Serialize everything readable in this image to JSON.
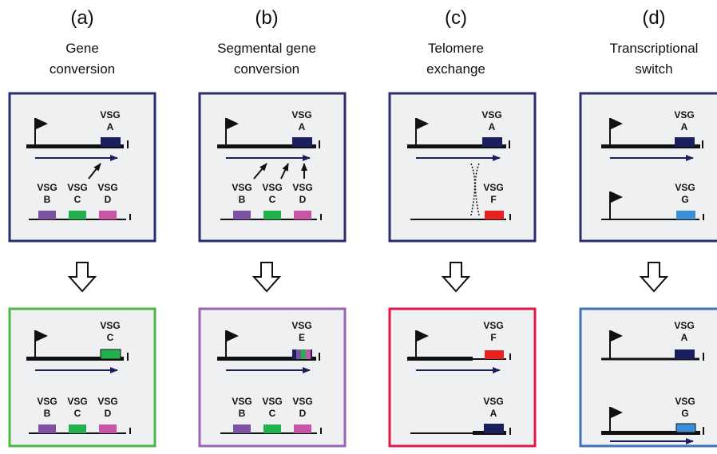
{
  "colors": {
    "panel_fill": "#eef0f1",
    "top_border": "#2c2d6e",
    "vsg_navy": "#1a1f5e",
    "vsg_purple": "#7e52a3",
    "vsg_green": "#22b14c",
    "vsg_magenta": "#c955a6",
    "vsg_red": "#e8231f",
    "vsg_blue": "#3b8fd6",
    "border_green": "#4db848",
    "border_purple": "#9a63b6",
    "border_red": "#e3174c",
    "border_blue": "#3f72b9"
  },
  "vsg_word": "VSG",
  "columns": [
    {
      "letter": "(a)",
      "title": [
        "Gene",
        "conversion"
      ],
      "result_border": "green",
      "top_labels": [
        "A",
        "B",
        "C",
        "D"
      ],
      "bottom_labels": [
        "C",
        "B",
        "C",
        "D"
      ]
    },
    {
      "letter": "(b)",
      "title": [
        "Segmental gene",
        "conversion"
      ],
      "result_border": "purple",
      "top_labels": [
        "A",
        "B",
        "C",
        "D"
      ],
      "bottom_labels": [
        "E",
        "B",
        "C",
        "D"
      ]
    },
    {
      "letter": "(c)",
      "title": [
        "Telomere",
        "exchange"
      ],
      "result_border": "red",
      "top_labels": [
        "A",
        "F"
      ],
      "bottom_labels": [
        "F",
        "A"
      ]
    },
    {
      "letter": "(d)",
      "title": [
        "Transcriptional",
        "switch"
      ],
      "result_border": "blue",
      "top_labels": [
        "A",
        "G"
      ],
      "bottom_labels": [
        "A",
        "G"
      ]
    }
  ]
}
